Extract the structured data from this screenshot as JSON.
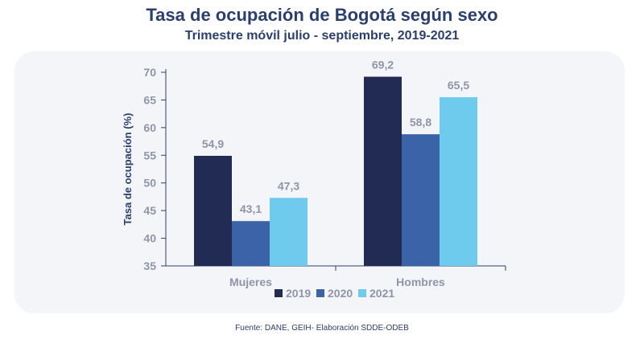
{
  "header": {
    "title": "Tasa de ocupación de Bogotá según sexo",
    "subtitle": "Trimestre móvil julio - septiembre, 2019-2021"
  },
  "footer": {
    "source": "Fuente: DANE, GEIH- Elaboración SDDE-ODEB"
  },
  "chart_data": {
    "type": "bar",
    "title": "Tasa de ocupación de Bogotá según sexo",
    "subtitle": "Trimestre móvil julio - septiembre, 2019-2021",
    "xlabel": "",
    "ylabel": "Tasa de ocupación (%)",
    "ylim": [
      35,
      70
    ],
    "yticks": [
      35,
      40,
      45,
      50,
      55,
      60,
      65,
      70
    ],
    "categories": [
      "Mujeres",
      "Hombres"
    ],
    "series": [
      {
        "name": "2019",
        "color": "#222b54",
        "values": [
          54.9,
          69.2
        ],
        "labels": [
          "54,9",
          "69,2"
        ]
      },
      {
        "name": "2020",
        "color": "#3a63a8",
        "values": [
          43.1,
          58.8
        ],
        "labels": [
          "43,1",
          "58,8"
        ]
      },
      {
        "name": "2021",
        "color": "#6ecbee",
        "values": [
          47.3,
          65.5
        ],
        "labels": [
          "47,3",
          "65,5"
        ]
      }
    ],
    "grid": false,
    "legend": "bottom"
  }
}
